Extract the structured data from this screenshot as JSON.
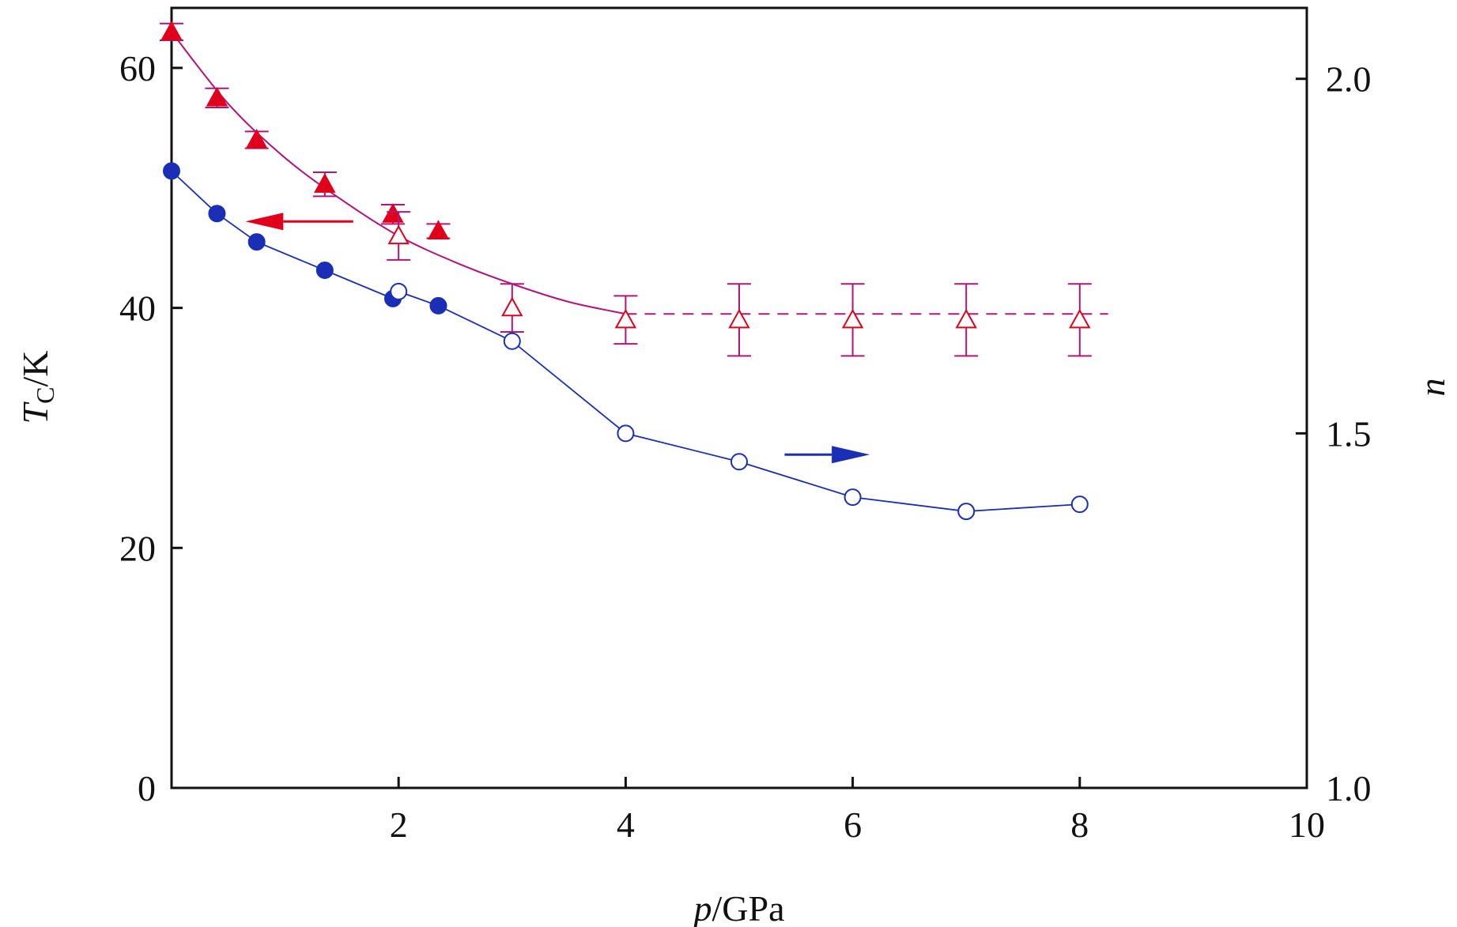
{
  "chart_data": {
    "type": "scatter",
    "title": "",
    "xlabel": {
      "italic": "p",
      "rest": "/GPa"
    },
    "ylabel_left": {
      "italic": "T",
      "sub": "C",
      "rest": "/K"
    },
    "ylabel_right": "n",
    "xlim": [
      0,
      10
    ],
    "ylim_left": [
      0,
      65
    ],
    "ylim_right": [
      1.0,
      2.1
    ],
    "x_ticks": [
      2,
      4,
      6,
      8,
      10
    ],
    "x_tick_labels": [
      "2",
      "4",
      "6",
      "8",
      "10"
    ],
    "y_left_ticks": [
      0,
      20,
      40,
      60
    ],
    "y_left_tick_labels": [
      "0",
      "20",
      "40",
      "60"
    ],
    "y_right_ticks": [
      1.0,
      1.5,
      2.0
    ],
    "y_right_tick_labels": [
      "1.0",
      "1.5",
      "2.0"
    ],
    "colors": {
      "tc": "#e0001b",
      "tc_line": "#b0157a",
      "n": "#1a2fb5",
      "axis": "#111111"
    },
    "series": [
      {
        "name": "Tc (filled)",
        "axis": "left",
        "marker": "filled-triangle",
        "x": [
          0.0,
          0.4,
          0.75,
          1.35,
          1.95,
          2.35
        ],
        "y": [
          63.0,
          57.5,
          54.0,
          50.3,
          47.8,
          46.4
        ],
        "err": [
          0.7,
          0.8,
          0.7,
          1.0,
          0.8,
          0.6
        ]
      },
      {
        "name": "Tc (open)",
        "axis": "left",
        "marker": "open-triangle",
        "x": [
          2.0,
          3.0,
          4.0,
          5.0,
          6.0,
          7.0,
          8.0
        ],
        "y": [
          46.0,
          40.0,
          39.0,
          39.0,
          39.0,
          39.0,
          39.0
        ],
        "err": [
          2.0,
          2.0,
          2.0,
          3.0,
          3.0,
          3.0,
          3.0
        ]
      },
      {
        "name": "Tc fit (solid)",
        "axis": "left",
        "line": "solid",
        "x": [
          0.0,
          0.5,
          1.0,
          1.5,
          2.0,
          2.5,
          3.0,
          3.5,
          4.0
        ],
        "y": [
          63.0,
          57.0,
          52.5,
          49.0,
          46.0,
          43.8,
          42.0,
          40.5,
          39.5
        ]
      },
      {
        "name": "Tc fit (dashed)",
        "axis": "left",
        "line": "dashed",
        "x": [
          4.0,
          8.25
        ],
        "y": [
          39.5,
          39.5
        ]
      },
      {
        "name": "n (filled)",
        "axis": "right",
        "marker": "filled-circle",
        "x": [
          0.0,
          0.4,
          0.75,
          1.35,
          1.95,
          2.35
        ],
        "y": [
          1.87,
          1.81,
          1.77,
          1.73,
          1.69,
          1.68
        ]
      },
      {
        "name": "n (open)",
        "axis": "right",
        "marker": "open-circle",
        "x": [
          2.0,
          3.0,
          4.0,
          5.0,
          6.0,
          7.0,
          8.0
        ],
        "y": [
          1.7,
          1.63,
          1.5,
          1.46,
          1.41,
          1.39,
          1.4
        ]
      }
    ],
    "annotations": [
      {
        "text": "arrow pointing left to Tc axis",
        "direction": "left",
        "color": "#e0001b",
        "x_from": 1.6,
        "x_to": 0.65,
        "y": 47.2,
        "axis": "left"
      },
      {
        "text": "arrow pointing right to n axis",
        "direction": "right",
        "color": "#1a2fb5",
        "x_from": 5.4,
        "x_to": 6.15,
        "y": 1.47,
        "axis": "right"
      }
    ]
  }
}
